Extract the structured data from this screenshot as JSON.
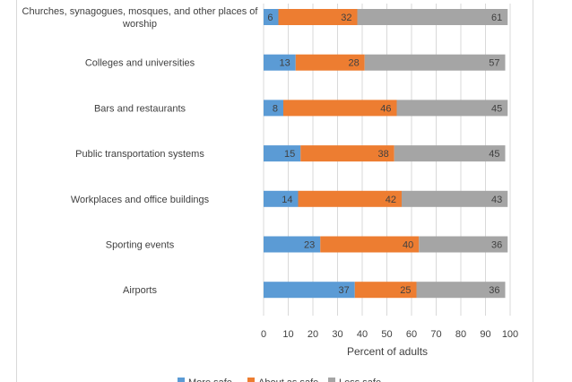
{
  "chart_data": {
    "type": "bar",
    "orientation": "horizontal",
    "stacked": true,
    "categories": [
      "Churches, synagogues, mosques, and other places of worship",
      "Colleges and universities",
      "Bars and restaurants",
      "Public transportation systems",
      "Workplaces and office buildings",
      "Sporting events",
      "Airports"
    ],
    "series": [
      {
        "name": "More safe",
        "color": "#5b9bd5",
        "values": [
          6,
          13,
          8,
          15,
          14,
          23,
          37
        ]
      },
      {
        "name": "About as safe",
        "color": "#ed7d31",
        "values": [
          32,
          28,
          46,
          38,
          42,
          40,
          25
        ]
      },
      {
        "name": "Less safe",
        "color": "#a5a5a5",
        "values": [
          61,
          57,
          45,
          45,
          43,
          36,
          36
        ]
      }
    ],
    "xlabel": "Percent of adults",
    "xlim": [
      0,
      100
    ],
    "xticks": [
      0,
      10,
      20,
      30,
      40,
      50,
      60,
      70,
      80,
      90,
      100
    ],
    "grid": true,
    "legend_position": "bottom"
  }
}
